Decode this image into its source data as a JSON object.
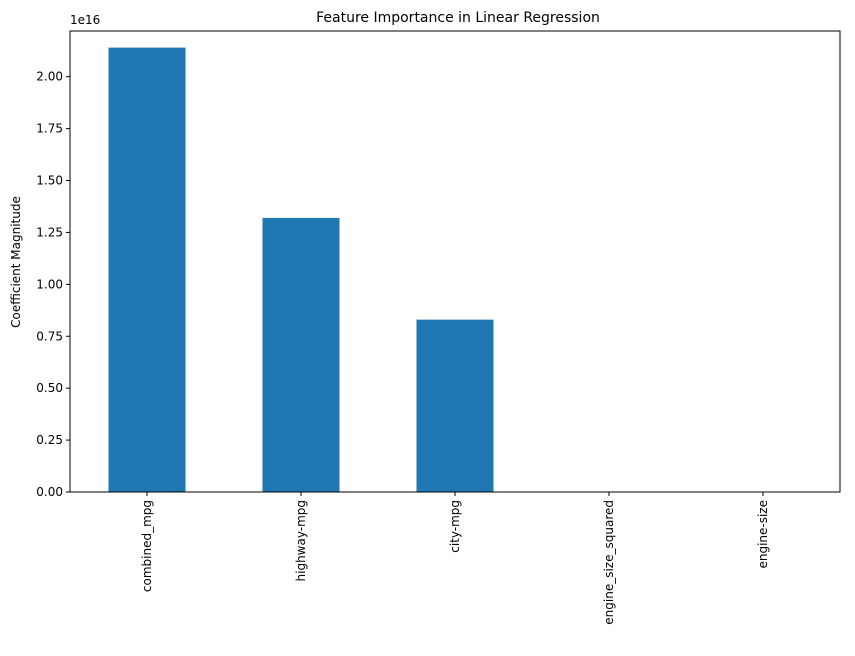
{
  "chart_data": {
    "type": "bar",
    "title": "Feature Importance in Linear Regression",
    "xlabel": "",
    "ylabel": "Coefficient Magnitude",
    "scale_label": "1e16",
    "categories": [
      "combined_mpg",
      "highway-mpg",
      "city-mpg",
      "engine_size_squared",
      "engine-size"
    ],
    "values": [
      2.14,
      1.32,
      0.83,
      0.0,
      0.0
    ],
    "value_unit": "x1e16",
    "ylim": [
      0,
      2.22
    ],
    "yticks": [
      "0.00",
      "0.25",
      "0.50",
      "0.75",
      "1.00",
      "1.25",
      "1.50",
      "1.75",
      "2.00"
    ],
    "bar_color": "#1f77b4",
    "grid": false,
    "legend": false
  }
}
